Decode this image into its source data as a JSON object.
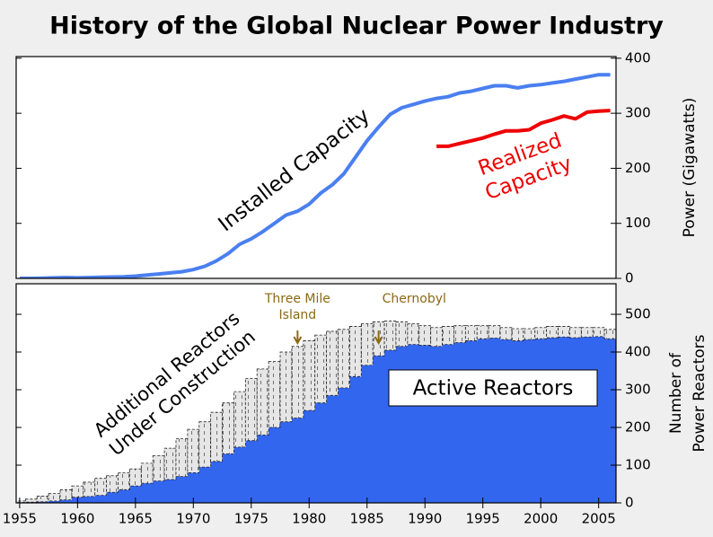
{
  "title": "History of the Global Nuclear Power Industry",
  "chart_data": [
    {
      "type": "line",
      "y_label": "Power (Gigawatts)",
      "x": [
        1955,
        1956,
        1957,
        1958,
        1959,
        1960,
        1961,
        1962,
        1963,
        1964,
        1965,
        1966,
        1967,
        1968,
        1969,
        1970,
        1971,
        1972,
        1973,
        1974,
        1975,
        1976,
        1977,
        1978,
        1979,
        1980,
        1981,
        1982,
        1983,
        1984,
        1985,
        1986,
        1987,
        1988,
        1989,
        1990,
        1991,
        1992,
        1993,
        1994,
        1995,
        1996,
        1997,
        1998,
        1999,
        2000,
        2001,
        2002,
        2003,
        2004,
        2005,
        2006
      ],
      "xlim": [
        1954.7,
        2006.5
      ],
      "ylim": [
        0,
        403
      ],
      "yticks": [
        0,
        100,
        200,
        300,
        400
      ],
      "series": [
        {
          "name": "Installed Capacity",
          "color": "#4a7ff0",
          "values": [
            0,
            0,
            0.5,
            1,
            1.5,
            1,
            1.5,
            2,
            2.5,
            3,
            4,
            6,
            8,
            10,
            12,
            16,
            22,
            32,
            45,
            62,
            72,
            85,
            100,
            115,
            122,
            135,
            155,
            170,
            190,
            220,
            250,
            275,
            298,
            310,
            316,
            322,
            327,
            330,
            337,
            340,
            345,
            350,
            350,
            346,
            350,
            352,
            355,
            358,
            362,
            366,
            370,
            370
          ]
        },
        {
          "name": [
            "Realized",
            "Capacity"
          ],
          "color": "#ee0000",
          "values": [
            null,
            null,
            null,
            null,
            null,
            null,
            null,
            null,
            null,
            null,
            null,
            null,
            null,
            null,
            null,
            null,
            null,
            null,
            null,
            null,
            null,
            null,
            null,
            null,
            null,
            null,
            null,
            null,
            null,
            null,
            null,
            null,
            null,
            null,
            null,
            null,
            240,
            240,
            245,
            250,
            255,
            262,
            268,
            268,
            270,
            282,
            288,
            295,
            290,
            302,
            304,
            305
          ]
        }
      ]
    },
    {
      "type": "stacked-step",
      "y_label": [
        "Number of",
        "Power Reactors"
      ],
      "x": [
        1955,
        1956,
        1957,
        1958,
        1959,
        1960,
        1961,
        1962,
        1963,
        1964,
        1965,
        1966,
        1967,
        1968,
        1969,
        1970,
        1971,
        1972,
        1973,
        1974,
        1975,
        1976,
        1977,
        1978,
        1979,
        1980,
        1981,
        1982,
        1983,
        1984,
        1985,
        1986,
        1987,
        1988,
        1989,
        1990,
        1991,
        1992,
        1993,
        1994,
        1995,
        1996,
        1997,
        1998,
        1999,
        2000,
        2001,
        2002,
        2003,
        2004,
        2005,
        2006
      ],
      "xlim": [
        1954.7,
        2006.5
      ],
      "xticks": [
        1955,
        1960,
        1965,
        1970,
        1975,
        1980,
        1985,
        1990,
        1995,
        2000,
        2005
      ],
      "ylim": [
        0,
        581
      ],
      "yticks": [
        0,
        100,
        200,
        300,
        400,
        500
      ],
      "series": [
        {
          "name": "Active Reactors",
          "color": "#3366ee",
          "values": [
            1,
            2,
            3,
            5,
            8,
            15,
            17,
            20,
            28,
            35,
            45,
            52,
            58,
            62,
            70,
            80,
            95,
            110,
            130,
            148,
            165,
            180,
            200,
            215,
            225,
            245,
            265,
            285,
            305,
            335,
            365,
            390,
            405,
            415,
            420,
            418,
            415,
            420,
            425,
            430,
            435,
            437,
            433,
            430,
            433,
            435,
            438,
            440,
            438,
            440,
            441,
            435
          ]
        },
        {
          "name": [
            "Additional Reactors",
            "Under Construction"
          ],
          "color": "#e6e6e6",
          "values": [
            4,
            8,
            15,
            20,
            27,
            30,
            38,
            45,
            44,
            45,
            45,
            53,
            67,
            83,
            100,
            115,
            120,
            130,
            135,
            147,
            165,
            175,
            175,
            185,
            190,
            185,
            180,
            170,
            155,
            133,
            110,
            90,
            77,
            65,
            55,
            52,
            50,
            48,
            45,
            40,
            35,
            33,
            32,
            32,
            29,
            30,
            30,
            28,
            27,
            25,
            24,
            25
          ]
        }
      ],
      "annotations": [
        {
          "text": [
            "Three Mile",
            "Island"
          ],
          "x": 1979,
          "color": "#8b6914"
        },
        {
          "text": "Chernobyl",
          "x": 1986,
          "color": "#8b6914"
        }
      ]
    }
  ]
}
